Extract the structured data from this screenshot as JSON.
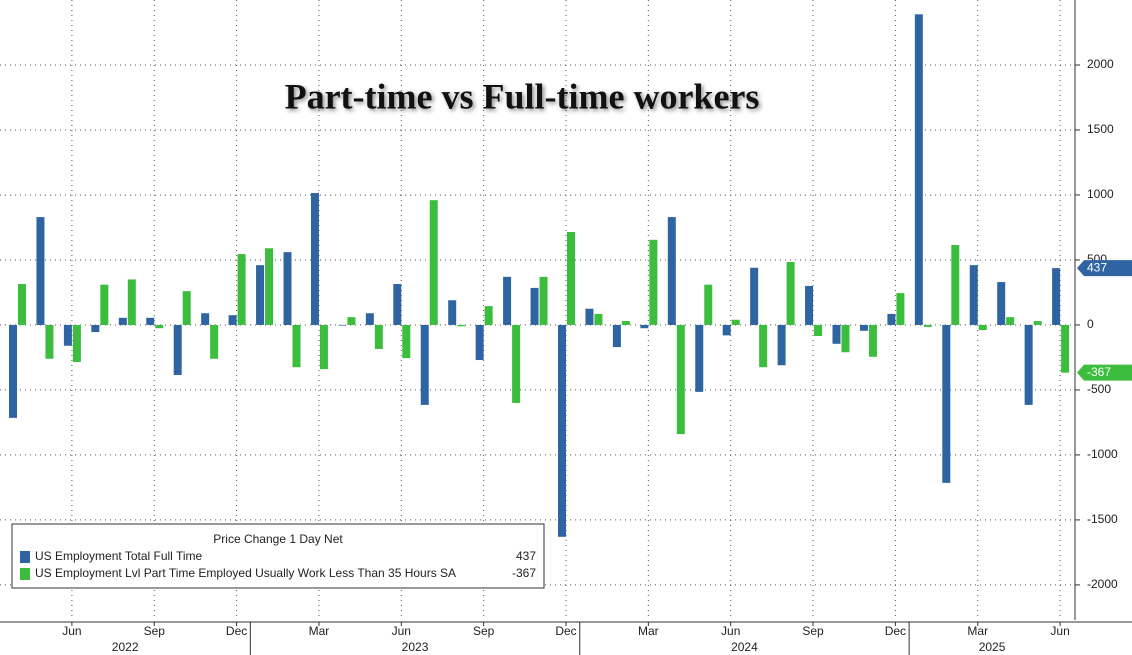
{
  "chart_data": {
    "type": "bar",
    "title": "Part-time vs Full-time workers",
    "legend_title": "Price Change 1 Day Net",
    "categories": [
      null,
      null,
      "Jun",
      null,
      null,
      "Sep",
      null,
      null,
      "Dec",
      null,
      null,
      "Mar",
      null,
      null,
      "Jun",
      null,
      null,
      "Sep",
      null,
      null,
      "Dec",
      null,
      null,
      "Mar",
      null,
      null,
      "Jun",
      null,
      null,
      "Sep",
      null,
      null,
      "Dec",
      null,
      null,
      "Mar",
      null,
      null,
      "Jun"
    ],
    "years": [
      "2022",
      "2023",
      "2024",
      "2025"
    ],
    "series": [
      {
        "name": "US Employment Total Full Time",
        "color": "#2f64a3",
        "values": [
          -715,
          830,
          -160,
          -55,
          55,
          55,
          -385,
          90,
          75,
          460,
          560,
          1015,
          -5,
          90,
          315,
          -615,
          190,
          -270,
          370,
          285,
          -1630,
          125,
          -170,
          -25,
          830,
          -515,
          -80,
          440,
          -310,
          300,
          -145,
          -45,
          85,
          2390,
          -1215,
          460,
          330,
          -615,
          437
        ]
      },
      {
        "name": "US Employment Lvl Part Time Employed Usually Work Less Than 35 Hours SA",
        "color": "#3dbd3d",
        "values": [
          315,
          -260,
          -285,
          310,
          350,
          -25,
          260,
          -260,
          545,
          590,
          -325,
          -340,
          60,
          -185,
          -255,
          960,
          -10,
          145,
          -600,
          370,
          715,
          85,
          30,
          655,
          -840,
          310,
          40,
          -325,
          485,
          -85,
          -210,
          -245,
          245,
          -15,
          615,
          -40,
          60,
          30,
          -367
        ]
      }
    ],
    "ylim": [
      -2270,
      2500
    ],
    "yticks": [
      -2000,
      -1500,
      -1000,
      -500,
      0,
      500,
      1000,
      1500,
      2000
    ],
    "grid": true,
    "legend": "lower left"
  }
}
